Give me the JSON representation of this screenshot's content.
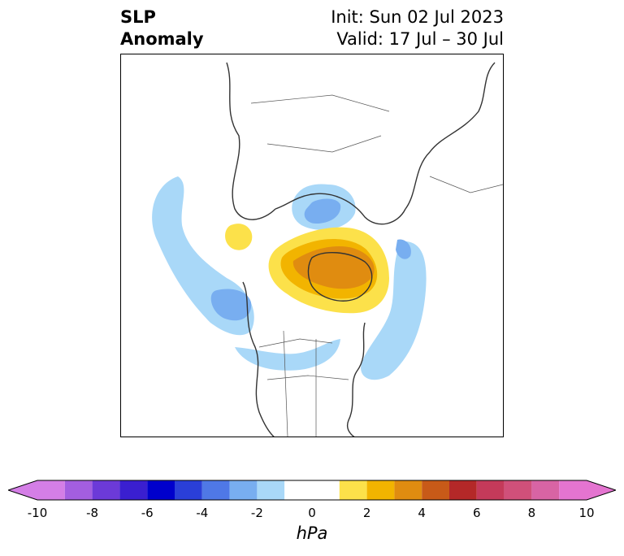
{
  "title": {
    "left_line1": "SLP",
    "left_line2": "Anomaly",
    "init": "Init: Sun 02 Jul 2023",
    "valid": "Valid: 17 Jul – 30 Jul"
  },
  "colorbar": {
    "units": "hPa",
    "extend": "both",
    "boundaries": [
      -10,
      -9,
      -8,
      -7,
      -6,
      -5,
      -4,
      -3,
      -2,
      -1,
      1,
      2,
      3,
      4,
      5,
      6,
      7,
      8,
      9,
      10
    ],
    "tick_labels": [
      "-10",
      "-8",
      "-6",
      "-4",
      "-2",
      "0",
      "2",
      "4",
      "6",
      "8",
      "10"
    ],
    "tick_values": [
      -10,
      -8,
      -6,
      -4,
      -2,
      0,
      2,
      4,
      6,
      8,
      10
    ],
    "colors": [
      "#d47ee6",
      "#a35ee0",
      "#6c3ad8",
      "#3a1fd0",
      "#0000cc",
      "#2a3fd8",
      "#4f78e6",
      "#78aef0",
      "#a9d8f8",
      "#ffffff",
      "#fce14a",
      "#f2b400",
      "#e08c10",
      "#c85a18",
      "#b42828",
      "#c43a5a",
      "#d0507a",
      "#d864a4",
      "#e474d0"
    ],
    "under_color": "#d47ee6",
    "over_color": "#e474d0"
  },
  "map": {
    "projection": "north-polar-stereographic",
    "anomaly_regions": [
      {
        "name": "east-pacific-low",
        "sign": "negative",
        "value": -2
      },
      {
        "name": "east-pacific-low-core",
        "sign": "negative",
        "value": -3
      },
      {
        "name": "siberia-low",
        "sign": "negative",
        "value": -2
      },
      {
        "name": "siberia-low-core",
        "sign": "negative",
        "value": -3
      },
      {
        "name": "north-atlantic-low",
        "sign": "negative",
        "value": -2
      },
      {
        "name": "hudson-bay-low",
        "sign": "negative",
        "value": -2
      },
      {
        "name": "greenland-arctic-high",
        "sign": "positive",
        "value": 2
      },
      {
        "name": "greenland-arctic-high-core",
        "sign": "positive",
        "value": 4
      },
      {
        "name": "bering-high",
        "sign": "positive",
        "value": 2
      }
    ]
  }
}
